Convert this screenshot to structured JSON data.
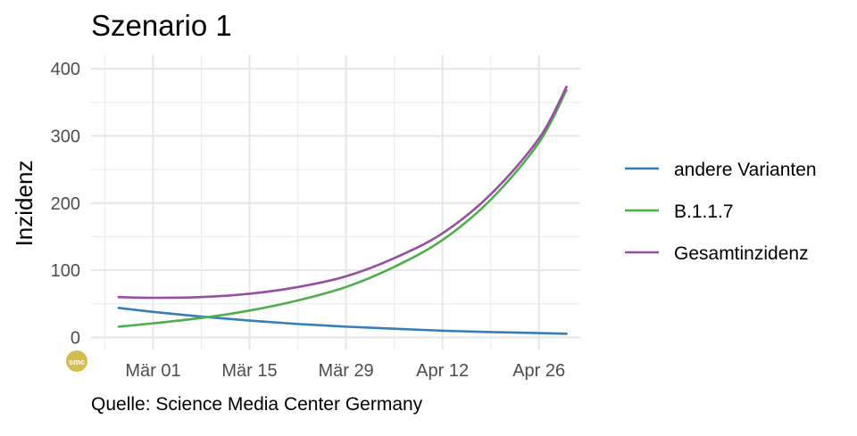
{
  "chart_data": {
    "type": "line",
    "title": "Szenario 1",
    "xlabel": "",
    "ylabel": "Inzidenz",
    "caption": "Quelle: Science Media Center Germany",
    "logo_text": "smc",
    "x_start": "2021-02-24",
    "x_end": "2021-04-30",
    "xlim": [
      "2021-02-20",
      "2021-05-02"
    ],
    "ylim": [
      -18,
      420
    ],
    "x_ticks": [
      {
        "date": "2021-03-01",
        "label": "Mär 01"
      },
      {
        "date": "2021-03-15",
        "label": "Mär 15"
      },
      {
        "date": "2021-03-29",
        "label": "Mär 29"
      },
      {
        "date": "2021-04-12",
        "label": "Apr 12"
      },
      {
        "date": "2021-04-26",
        "label": "Apr 26"
      }
    ],
    "y_ticks": [
      0,
      100,
      200,
      300,
      400
    ],
    "grid": true,
    "legend_position": "right",
    "series": [
      {
        "name": "andere Varianten",
        "color": "#377eb8",
        "x": [
          "2021-02-24",
          "2021-03-01",
          "2021-03-08",
          "2021-03-15",
          "2021-03-22",
          "2021-03-29",
          "2021-04-05",
          "2021-04-12",
          "2021-04-19",
          "2021-04-26",
          "2021-04-30"
        ],
        "values": [
          44,
          38,
          31,
          25,
          20,
          16,
          13,
          10,
          8,
          6.5,
          5.5
        ]
      },
      {
        "name": "B.1.1.7",
        "color": "#4daf4a",
        "x": [
          "2021-02-24",
          "2021-03-01",
          "2021-03-08",
          "2021-03-15",
          "2021-03-22",
          "2021-03-29",
          "2021-04-05",
          "2021-04-12",
          "2021-04-19",
          "2021-04-26",
          "2021-04-30"
        ],
        "values": [
          16,
          21,
          29,
          40,
          55,
          75,
          105,
          145,
          205,
          290,
          368
        ]
      },
      {
        "name": "Gesamtinzidenz",
        "color": "#984ea3",
        "x": [
          "2021-02-24",
          "2021-03-01",
          "2021-03-08",
          "2021-03-15",
          "2021-03-22",
          "2021-03-29",
          "2021-04-05",
          "2021-04-12",
          "2021-04-19",
          "2021-04-26",
          "2021-04-30"
        ],
        "values": [
          60,
          59,
          60,
          65,
          75,
          91,
          118,
          155,
          213,
          296,
          373
        ]
      }
    ]
  }
}
